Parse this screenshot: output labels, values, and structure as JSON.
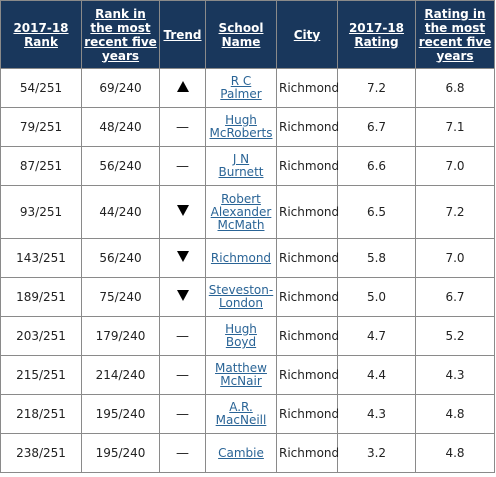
{
  "headers": {
    "rank_2017": "2017-18 Rank",
    "rank_recent": "Rank in the most recent five years",
    "trend": "Trend",
    "school": "School Name",
    "city": "City",
    "rating_2017": "2017-18 Rating",
    "rating_recent": "Rating in the most recent five years"
  },
  "trend_icons": {
    "up": "triangle-up-icon",
    "down": "triangle-down-icon",
    "flat": "dash-icon"
  },
  "rows": [
    {
      "rank_2017": "54/251",
      "rank_recent": "69/240",
      "trend": "up",
      "trend_text": "",
      "school_lines": [
        "R C",
        "Palmer"
      ],
      "city": "Richmond",
      "rating_2017": "7.2",
      "rating_recent": "6.8"
    },
    {
      "rank_2017": "79/251",
      "rank_recent": "48/240",
      "trend": "flat",
      "trend_text": "—",
      "school_lines": [
        "Hugh",
        "McRoberts"
      ],
      "city": "Richmond",
      "rating_2017": "6.7",
      "rating_recent": "7.1"
    },
    {
      "rank_2017": "87/251",
      "rank_recent": "56/240",
      "trend": "flat",
      "trend_text": "—",
      "school_lines": [
        "J N",
        "Burnett"
      ],
      "city": "Richmond",
      "rating_2017": "6.6",
      "rating_recent": "7.0"
    },
    {
      "rank_2017": "93/251",
      "rank_recent": "44/240",
      "trend": "down",
      "trend_text": "",
      "school_lines": [
        "Robert",
        "Alexander",
        "McMath"
      ],
      "city": "Richmond",
      "rating_2017": "6.5",
      "rating_recent": "7.2"
    },
    {
      "rank_2017": "143/251",
      "rank_recent": "56/240",
      "trend": "down",
      "trend_text": "",
      "school_lines": [
        "Richmond"
      ],
      "city": "Richmond",
      "rating_2017": "5.8",
      "rating_recent": "7.0"
    },
    {
      "rank_2017": "189/251",
      "rank_recent": "75/240",
      "trend": "down",
      "trend_text": "",
      "school_lines": [
        "Steveston-",
        "London"
      ],
      "city": "Richmond",
      "rating_2017": "5.0",
      "rating_recent": "6.7"
    },
    {
      "rank_2017": "203/251",
      "rank_recent": "179/240",
      "trend": "flat",
      "trend_text": "—",
      "school_lines": [
        "Hugh",
        "Boyd"
      ],
      "city": "Richmond",
      "rating_2017": "4.7",
      "rating_recent": "5.2"
    },
    {
      "rank_2017": "215/251",
      "rank_recent": "214/240",
      "trend": "flat",
      "trend_text": "—",
      "school_lines": [
        "Matthew",
        "McNair"
      ],
      "city": "Richmond",
      "rating_2017": "4.4",
      "rating_recent": "4.3"
    },
    {
      "rank_2017": "218/251",
      "rank_recent": "195/240",
      "trend": "flat",
      "trend_text": "—",
      "school_lines": [
        "A.R.",
        "MacNeill"
      ],
      "city": "Richmond",
      "rating_2017": "4.3",
      "rating_recent": "4.8"
    },
    {
      "rank_2017": "238/251",
      "rank_recent": "195/240",
      "trend": "flat",
      "trend_text": "—",
      "school_lines": [
        "Cambie"
      ],
      "city": "Richmond",
      "rating_2017": "3.2",
      "rating_recent": "4.8"
    }
  ]
}
